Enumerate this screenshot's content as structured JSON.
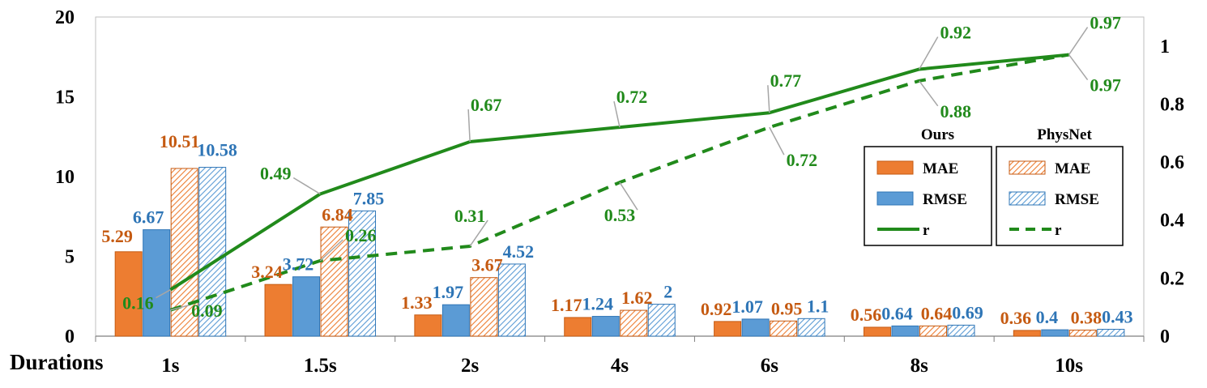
{
  "chart_data": {
    "type": "bar",
    "xlabel": "Durations",
    "categories": [
      "1s",
      "1.5s",
      "2s",
      "4s",
      "6s",
      "8s",
      "10s"
    ],
    "left_axis": {
      "ylim": [
        0,
        20
      ],
      "ticks": [
        "0",
        "5",
        "10",
        "15",
        "20"
      ],
      "tick_values": [
        0,
        5,
        10,
        15,
        20
      ]
    },
    "right_axis": {
      "ylim": [
        0,
        1.1
      ],
      "ticks": [
        "0",
        "0.2",
        "0.4",
        "0.6",
        "0.8",
        "1"
      ],
      "tick_values": [
        0,
        0.2,
        0.4,
        0.6,
        0.8,
        1
      ]
    },
    "series": [
      {
        "name": "MAE",
        "group": "Ours",
        "kind": "bar",
        "pattern": "solid",
        "color": "#ED7D31",
        "label_color": "#C55A11",
        "values": [
          5.29,
          3.24,
          1.33,
          1.17,
          0.92,
          0.56,
          0.36
        ],
        "labels": [
          "5.29",
          "3.24",
          "1.33",
          "1.17",
          "0.92",
          "0.56",
          "0.36"
        ]
      },
      {
        "name": "RMSE",
        "group": "Ours",
        "kind": "bar",
        "pattern": "solid",
        "color": "#5B9BD5",
        "label_color": "#2E75B6",
        "values": [
          6.67,
          3.72,
          1.97,
          1.24,
          1.07,
          0.64,
          0.4
        ],
        "labels": [
          "6.67",
          "3.72",
          "1.97",
          "1.24",
          "1.07",
          "0.64",
          "0.4"
        ]
      },
      {
        "name": "MAE",
        "group": "PhysNet",
        "kind": "bar",
        "pattern": "hatched",
        "color": "#ED7D31",
        "label_color": "#C55A11",
        "values": [
          10.51,
          6.84,
          3.67,
          1.62,
          0.95,
          0.64,
          0.38
        ],
        "labels": [
          "10.51",
          "6.84",
          "3.67",
          "1.62",
          "0.95",
          "0.64",
          "0.38"
        ]
      },
      {
        "name": "RMSE",
        "group": "PhysNet",
        "kind": "bar",
        "pattern": "hatched",
        "color": "#5B9BD5",
        "label_color": "#2E75B6",
        "values": [
          10.58,
          7.85,
          4.52,
          2,
          1.1,
          0.69,
          0.43
        ],
        "labels": [
          "10.58",
          "7.85",
          "4.52",
          "2",
          "1.1",
          "0.69",
          "0.43"
        ]
      },
      {
        "name": "r",
        "group": "Ours",
        "kind": "line",
        "style": "solid",
        "axis": "right",
        "color": "#218A1B",
        "label_color": "#218A1B",
        "values": [
          0.16,
          0.49,
          0.67,
          0.72,
          0.77,
          0.92,
          0.97
        ],
        "labels": [
          "0.16",
          "0.49",
          "0.67",
          "0.72",
          "0.77",
          "0.92",
          "0.97"
        ]
      },
      {
        "name": "r",
        "group": "PhysNet",
        "kind": "line",
        "style": "dashed",
        "axis": "right",
        "color": "#218A1B",
        "label_color": "#218A1B",
        "values": [
          0.09,
          0.26,
          0.31,
          0.53,
          0.72,
          0.88,
          0.97
        ],
        "labels": [
          "0.09",
          "0.26",
          "0.31",
          "0.53",
          "0.72",
          "0.88",
          "0.97"
        ]
      }
    ],
    "legend": [
      {
        "title": "Ours",
        "entries": [
          "MAE",
          "RMSE",
          "r"
        ]
      },
      {
        "title": "PhysNet",
        "entries": [
          "MAE",
          "RMSE",
          "r"
        ]
      }
    ],
    "legend_position": "right"
  }
}
